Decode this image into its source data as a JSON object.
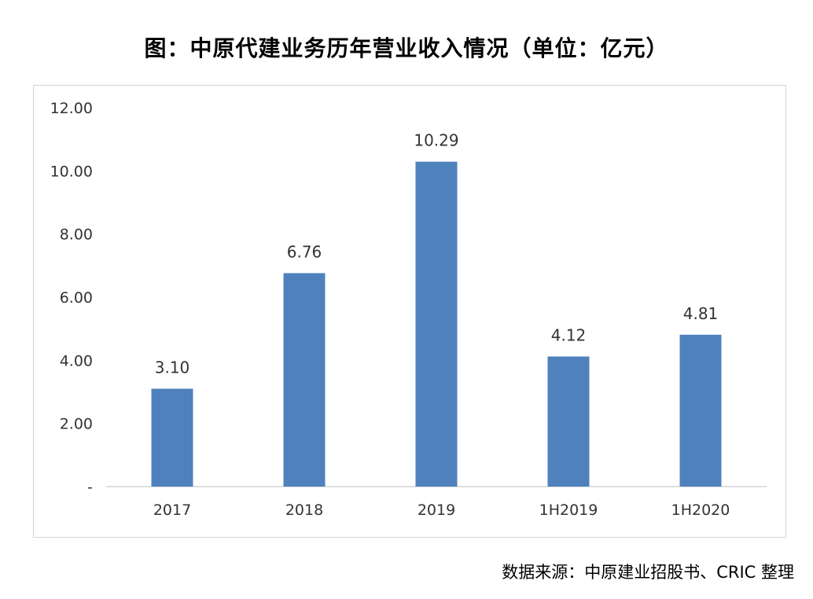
{
  "title": "图：中原代建业务历年营业收入情况（单位：亿元）",
  "source": "数据来源：中原建业招股书、CRIC 整理",
  "colors": {
    "bar": "#4f81bd",
    "axis": "#bfbfbf",
    "text": "#333333"
  },
  "chart_data": {
    "type": "bar",
    "title": "图：中原代建业务历年营业收入情况（单位：亿元）",
    "xlabel": "",
    "ylabel": "",
    "unit": "亿元",
    "categories": [
      "2017",
      "2018",
      "2019",
      "1H2019",
      "1H2020"
    ],
    "values": [
      3.1,
      6.76,
      10.29,
      4.12,
      4.81
    ],
    "value_labels": [
      "3.10",
      "6.76",
      "10.29",
      "4.12",
      "4.81"
    ],
    "ylim": [
      0,
      12
    ],
    "yticks": [
      0,
      2,
      4,
      6,
      8,
      10,
      12
    ],
    "ytick_labels": [
      "-",
      "2.00",
      "4.00",
      "6.00",
      "8.00",
      "10.00",
      "12.00"
    ],
    "grid": false,
    "legend": "none"
  }
}
